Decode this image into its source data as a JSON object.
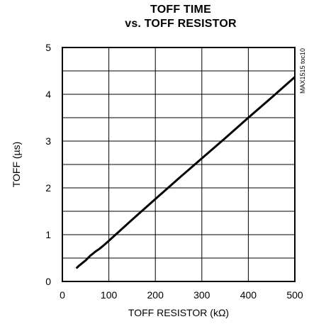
{
  "chart_data": {
    "type": "line",
    "title_lines": [
      "TOFF TIME",
      "vs. TOFF RESISTOR"
    ],
    "xlabel": "TOFF RESISTOR (kΩ)",
    "ylabel": "TOFF (µs)",
    "xlim": [
      0,
      500
    ],
    "ylim": [
      0,
      5
    ],
    "xticks": [
      0,
      100,
      200,
      300,
      400,
      500
    ],
    "yticks": [
      0,
      1,
      2,
      3,
      4,
      5
    ],
    "grid": true,
    "annotation": "MAX1515 toc10",
    "series": [
      {
        "x": [
          30,
          35,
          50,
          60,
          70,
          80,
          90,
          100,
          150,
          200,
          250,
          300,
          350,
          400,
          450,
          500
        ],
        "y": [
          0.28,
          0.33,
          0.45,
          0.55,
          0.63,
          0.7,
          0.78,
          0.87,
          1.32,
          1.76,
          2.2,
          2.63,
          3.06,
          3.5,
          3.93,
          4.37
        ]
      }
    ]
  }
}
